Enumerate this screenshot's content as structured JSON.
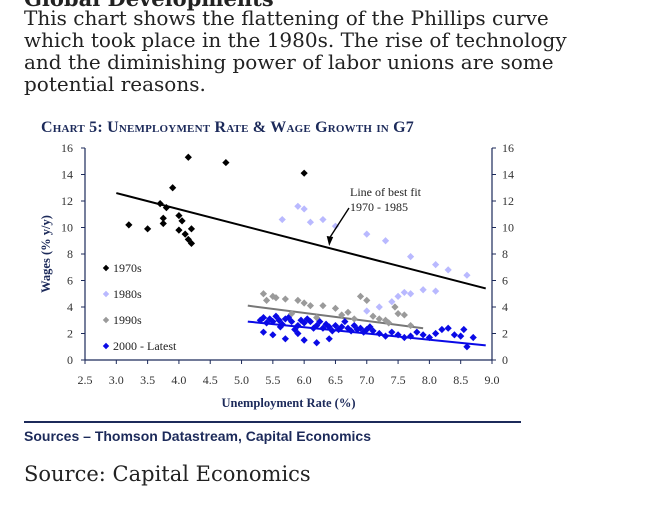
{
  "article": {
    "cut_heading": "Global Developments",
    "caption_lines": [
      "This chart shows the flattening of the Phillips curve",
      "which took place in the 1980s. The rise of technology",
      "and the diminishing power of labor unions are some",
      "potential reasons."
    ],
    "source_line": "Source: Capital Economics"
  },
  "chart_data": {
    "type": "scatter",
    "title": "Chart 5: Unemployment Rate & Wage Growth in G7",
    "xlabel": "Unemployment Rate (%)",
    "ylabel": "Wages (% y/y)",
    "xlim": [
      2.5,
      9.0
    ],
    "ylim": [
      0,
      16
    ],
    "x_ticks": [
      "2.5",
      "3.0",
      "3.5",
      "4.0",
      "4.5",
      "5.0",
      "5.5",
      "6.0",
      "6.5",
      "7.0",
      "7.5",
      "8.0",
      "8.5",
      "9.0"
    ],
    "y_ticks": [
      "0",
      "2",
      "4",
      "6",
      "8",
      "10",
      "12",
      "14",
      "16"
    ],
    "grid": false,
    "legend_position": "left",
    "annotation": {
      "lines": [
        "Line of best fit",
        "1970 - 1985"
      ],
      "arrow_to": [
        6.4,
        8.6
      ]
    },
    "series": [
      {
        "name": "1970s",
        "color": "#000000",
        "points": [
          [
            3.2,
            10.2
          ],
          [
            3.5,
            9.9
          ],
          [
            3.7,
            11.8
          ],
          [
            3.75,
            10.7
          ],
          [
            3.75,
            10.3
          ],
          [
            3.9,
            13.0
          ],
          [
            3.8,
            11.5
          ],
          [
            4.0,
            10.9
          ],
          [
            4.0,
            9.8
          ],
          [
            4.05,
            10.5
          ],
          [
            4.1,
            9.5
          ],
          [
            4.15,
            9.1
          ],
          [
            4.2,
            9.9
          ],
          [
            4.2,
            8.8
          ],
          [
            4.15,
            15.3
          ],
          [
            4.75,
            14.9
          ],
          [
            6.0,
            14.1
          ]
        ]
      },
      {
        "name": "1980s",
        "color": "#b9b9ff",
        "points": [
          [
            5.65,
            10.6
          ],
          [
            5.9,
            11.6
          ],
          [
            6.0,
            11.4
          ],
          [
            6.1,
            10.4
          ],
          [
            6.3,
            10.6
          ],
          [
            6.5,
            10.1
          ],
          [
            7.0,
            9.5
          ],
          [
            7.3,
            9.0
          ],
          [
            7.7,
            7.8
          ],
          [
            8.1,
            7.2
          ],
          [
            8.3,
            6.8
          ],
          [
            8.6,
            6.4
          ],
          [
            7.9,
            5.3
          ],
          [
            7.6,
            5.1
          ],
          [
            7.7,
            5.0
          ],
          [
            7.5,
            4.8
          ],
          [
            7.4,
            4.4
          ],
          [
            8.1,
            5.2
          ],
          [
            7.2,
            4.0
          ],
          [
            7.0,
            3.7
          ]
        ]
      },
      {
        "name": "1990s",
        "color": "#9a9a9a",
        "points": [
          [
            5.35,
            5.0
          ],
          [
            5.5,
            4.8
          ],
          [
            5.4,
            4.5
          ],
          [
            5.55,
            4.7
          ],
          [
            5.7,
            4.6
          ],
          [
            5.9,
            4.5
          ],
          [
            6.0,
            4.3
          ],
          [
            6.1,
            4.1
          ],
          [
            6.3,
            4.1
          ],
          [
            6.5,
            3.9
          ],
          [
            6.7,
            3.6
          ],
          [
            6.6,
            3.4
          ],
          [
            6.9,
            4.8
          ],
          [
            7.0,
            4.5
          ],
          [
            7.1,
            3.3
          ],
          [
            7.2,
            3.1
          ],
          [
            7.3,
            3.0
          ],
          [
            7.35,
            2.8
          ],
          [
            7.45,
            4.0
          ],
          [
            7.5,
            3.5
          ],
          [
            7.6,
            3.4
          ],
          [
            7.7,
            2.6
          ],
          [
            5.6,
            3.0
          ],
          [
            5.8,
            3.5
          ],
          [
            6.2,
            3.2
          ],
          [
            6.8,
            3.1
          ]
        ]
      },
      {
        "name": "2000 - Latest",
        "color": "#0a0ae6",
        "points": [
          [
            5.3,
            3.0
          ],
          [
            5.35,
            3.2
          ],
          [
            5.4,
            2.8
          ],
          [
            5.45,
            3.1
          ],
          [
            5.5,
            2.9
          ],
          [
            5.55,
            3.3
          ],
          [
            5.6,
            3.0
          ],
          [
            5.62,
            2.5
          ],
          [
            5.65,
            2.7
          ],
          [
            5.7,
            3.1
          ],
          [
            5.75,
            3.2
          ],
          [
            5.8,
            2.9
          ],
          [
            5.85,
            2.3
          ],
          [
            5.9,
            2.6
          ],
          [
            5.95,
            3.0
          ],
          [
            6.0,
            2.8
          ],
          [
            6.05,
            3.1
          ],
          [
            6.1,
            2.9
          ],
          [
            6.15,
            2.4
          ],
          [
            6.2,
            2.6
          ],
          [
            6.25,
            2.9
          ],
          [
            6.3,
            2.4
          ],
          [
            6.35,
            2.7
          ],
          [
            6.4,
            2.5
          ],
          [
            6.45,
            2.2
          ],
          [
            6.5,
            2.6
          ],
          [
            6.55,
            2.3
          ],
          [
            6.6,
            2.5
          ],
          [
            6.65,
            2.9
          ],
          [
            6.7,
            2.4
          ],
          [
            6.75,
            2.2
          ],
          [
            6.8,
            2.6
          ],
          [
            6.85,
            2.3
          ],
          [
            6.9,
            2.4
          ],
          [
            6.95,
            2.1
          ],
          [
            7.0,
            2.3
          ],
          [
            7.05,
            2.5
          ],
          [
            7.1,
            2.2
          ],
          [
            7.2,
            2.0
          ],
          [
            7.3,
            1.8
          ],
          [
            7.4,
            2.1
          ],
          [
            7.5,
            1.9
          ],
          [
            7.6,
            1.7
          ],
          [
            7.7,
            1.8
          ],
          [
            7.8,
            2.1
          ],
          [
            7.9,
            1.9
          ],
          [
            8.0,
            1.7
          ],
          [
            8.1,
            2.0
          ],
          [
            8.2,
            2.3
          ],
          [
            8.3,
            2.4
          ],
          [
            8.4,
            1.9
          ],
          [
            8.5,
            1.8
          ],
          [
            8.55,
            2.3
          ],
          [
            8.6,
            1.0
          ],
          [
            8.7,
            1.7
          ],
          [
            5.35,
            2.1
          ],
          [
            5.5,
            1.9
          ],
          [
            5.7,
            1.6
          ],
          [
            5.9,
            2.0
          ],
          [
            6.0,
            1.5
          ],
          [
            6.2,
            1.3
          ],
          [
            6.4,
            1.6
          ]
        ]
      }
    ],
    "trend_lines": [
      {
        "color": "#000000",
        "from": [
          3.0,
          12.6
        ],
        "to": [
          8.9,
          5.4
        ]
      },
      {
        "color": "#777777",
        "from": [
          5.1,
          4.1
        ],
        "to": [
          7.9,
          2.4
        ]
      },
      {
        "color": "#0a0ae6",
        "from": [
          5.1,
          2.9
        ],
        "to": [
          8.9,
          1.1
        ]
      }
    ]
  },
  "footer": {
    "sources": "Sources – Thomson Datastream, Capital Economics"
  }
}
